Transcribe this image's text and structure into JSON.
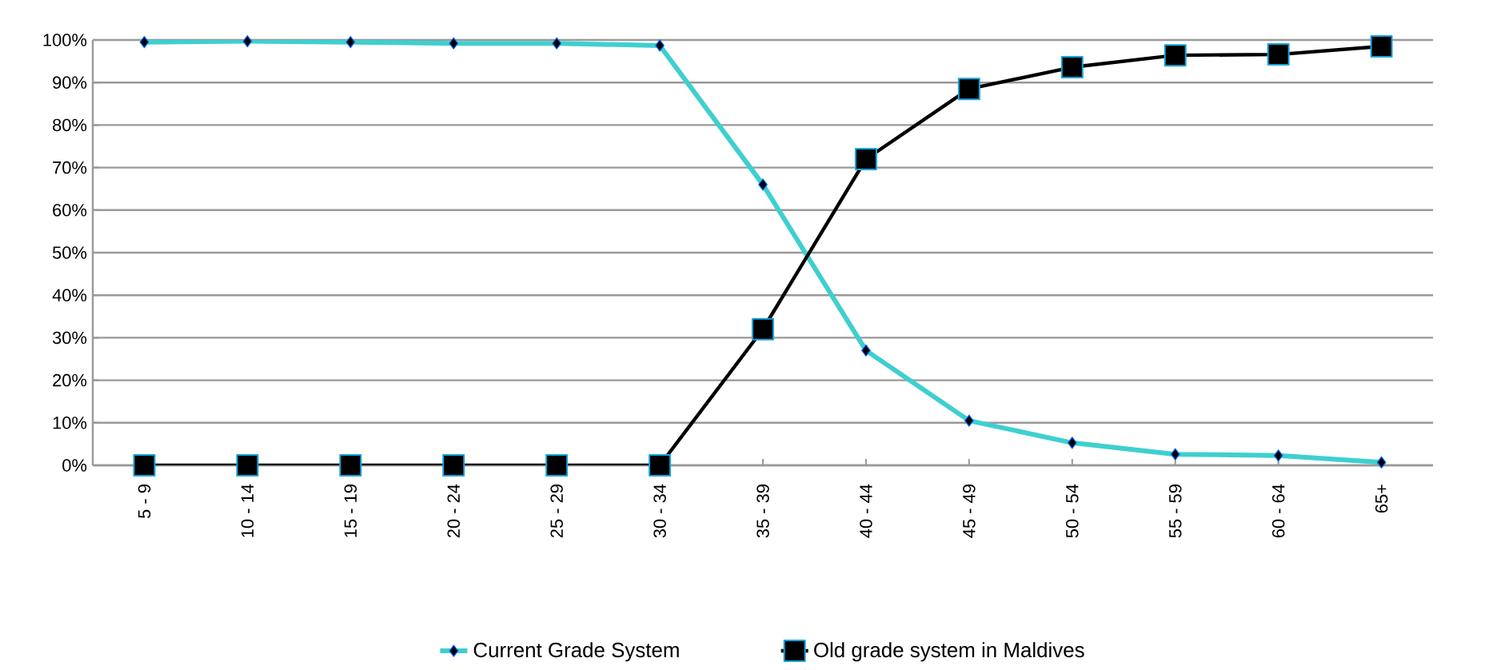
{
  "chart_data": {
    "type": "line",
    "categories": [
      "5 - 9",
      "10 - 14",
      "15 - 19",
      "20 - 24",
      "25 - 29",
      "30 - 34",
      "35 - 39",
      "40 - 44",
      "45 - 49",
      "50 - 54",
      "55 - 59",
      "60 - 64",
      "65+"
    ],
    "series": [
      {
        "name": "Current Grade System",
        "color": "#3fcfcf",
        "marker": "diamond",
        "values": [
          99.5,
          99.7,
          99.5,
          99.2,
          99.2,
          98.7,
          66,
          27,
          10.5,
          5.3,
          2.6,
          2.3,
          0.7
        ]
      },
      {
        "name": "Old grade system in Maldives",
        "color": "#000000",
        "marker": "square",
        "values": [
          0,
          0,
          0,
          0,
          0,
          0,
          32,
          72,
          88.5,
          93.6,
          96.4,
          96.6,
          98.5
        ]
      }
    ],
    "ylim": [
      0,
      100
    ],
    "yticks": [
      {
        "value": 0,
        "label": "0%"
      },
      {
        "value": 10,
        "label": "10%"
      },
      {
        "value": 20,
        "label": "20%"
      },
      {
        "value": 30,
        "label": "30%"
      },
      {
        "value": 40,
        "label": "40%"
      },
      {
        "value": 50,
        "label": "50%"
      },
      {
        "value": 60,
        "label": "60%"
      },
      {
        "value": 70,
        "label": "70%"
      },
      {
        "value": 80,
        "label": "80%"
      },
      {
        "value": 90,
        "label": "90%"
      },
      {
        "value": 100,
        "label": "100%"
      }
    ],
    "grid": "y",
    "legend": "bottom"
  }
}
